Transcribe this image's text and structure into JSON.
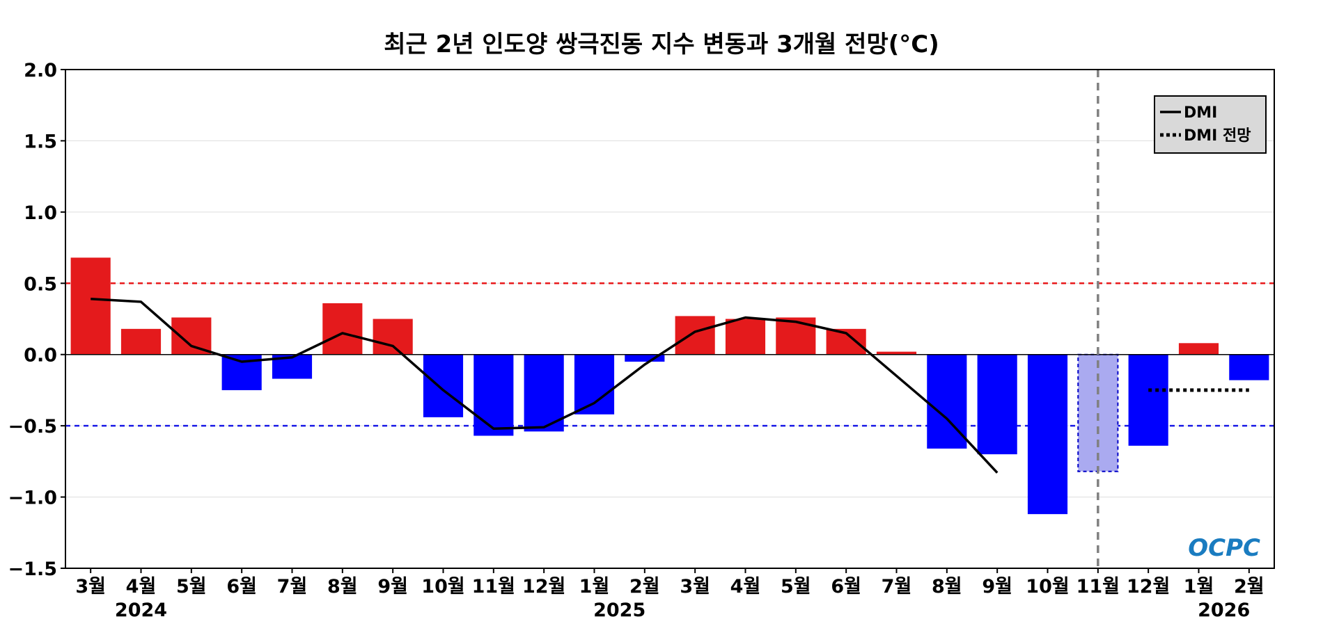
{
  "chart_data": {
    "type": "bar",
    "title": "최근 2년 인도양 쌍극진동 지수 변동과 3개월 전망(°C)",
    "xlabel": "",
    "ylabel": "",
    "ylim": [
      -1.5,
      2.0
    ],
    "yticks": [
      "2.0",
      "1.5",
      "1.0",
      "0.5",
      "0.0",
      "−0.5",
      "−1.0",
      "−1.5"
    ],
    "categories": [
      "3월",
      "4월",
      "5월",
      "6월",
      "7월",
      "8월",
      "9월",
      "10월",
      "11월",
      "12월",
      "1월",
      "2월",
      "3월",
      "4월",
      "5월",
      "6월",
      "7월",
      "8월",
      "9월",
      "10월",
      "11월",
      "12월",
      "1월",
      "2월"
    ],
    "year_labels": [
      {
        "label": "2024",
        "at_index": 1
      },
      {
        "label": "2025",
        "at_index": 10.5
      },
      {
        "label": "2026",
        "at_index": 22.5
      }
    ],
    "bars": [
      0.68,
      0.18,
      0.26,
      -0.25,
      -0.17,
      0.36,
      0.25,
      -0.44,
      -0.57,
      -0.54,
      -0.42,
      -0.05,
      0.27,
      0.25,
      0.26,
      0.18,
      0.02,
      -0.66,
      -0.7,
      -1.12,
      -0.82,
      -0.64,
      0.08,
      -0.18
    ],
    "forecast_bar_index": 20,
    "series": [
      {
        "name": "DMI",
        "style": "solid",
        "values": [
          0.39,
          0.37,
          0.06,
          -0.05,
          -0.02,
          0.15,
          0.06,
          -0.25,
          -0.52,
          -0.51,
          -0.34,
          -0.07,
          0.16,
          0.26,
          0.23,
          0.15,
          -0.15,
          -0.45,
          -0.83,
          null,
          null,
          null,
          null,
          null
        ]
      },
      {
        "name": "DMI 전망",
        "style": "dotted",
        "values": [
          null,
          null,
          null,
          null,
          null,
          null,
          null,
          null,
          null,
          null,
          null,
          null,
          null,
          null,
          null,
          null,
          null,
          null,
          null,
          null,
          null,
          -0.25,
          -0.25,
          -0.25
        ]
      }
    ],
    "thresholds": [
      {
        "value": 0.5,
        "color": "#e8191b"
      },
      {
        "value": -0.5,
        "color": "#1a1ae6"
      }
    ],
    "vline_index": 20,
    "legend_position": "top-right",
    "grid": "horizontal",
    "colors": {
      "positive": "#e41a1c",
      "negative": "#0000ff",
      "forecast_fill": "#aaaaf0",
      "forecast_edge": "#0000c8"
    },
    "logo": "OCPC"
  }
}
